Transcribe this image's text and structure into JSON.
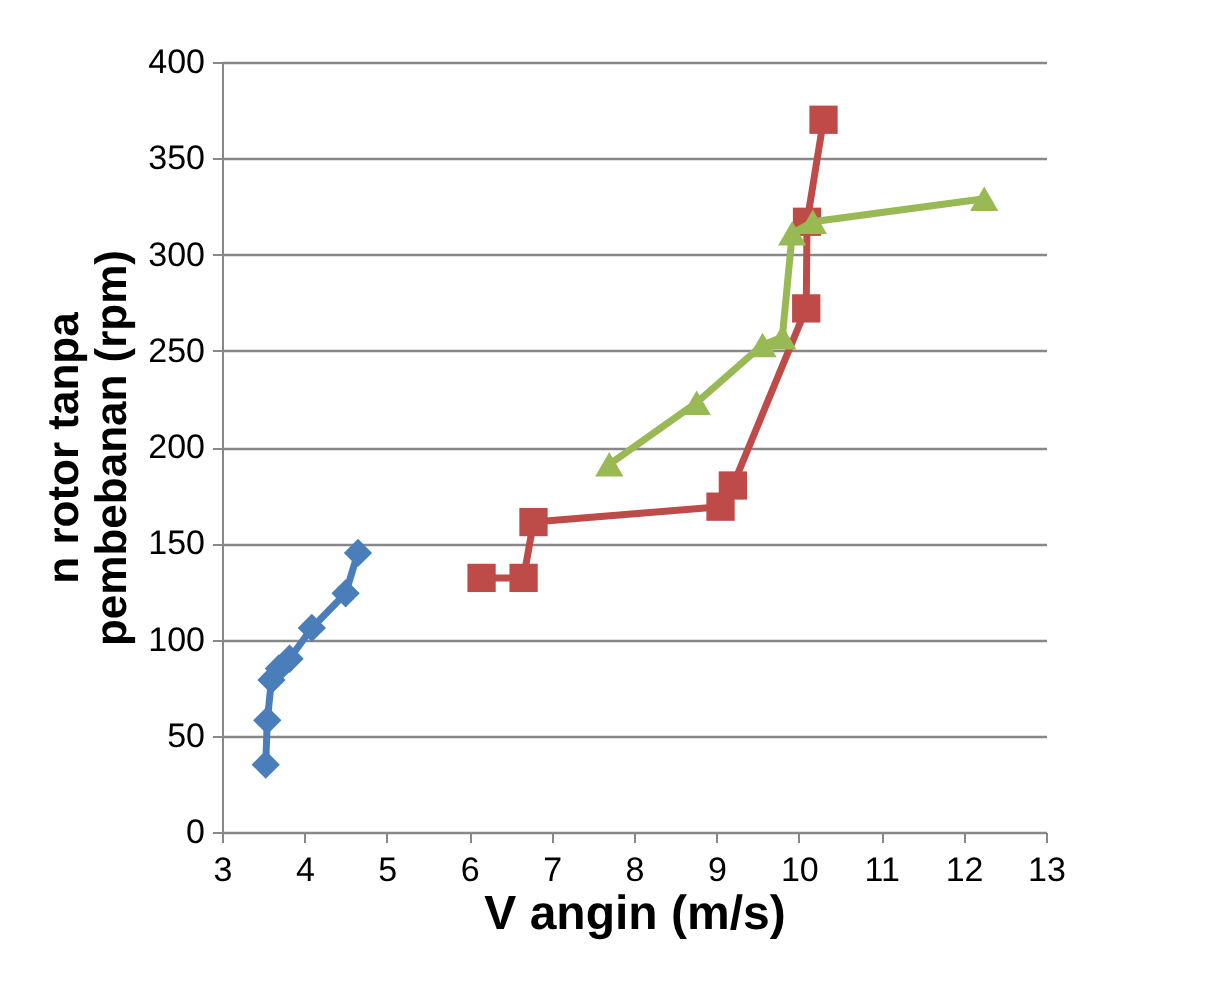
{
  "chart_data": {
    "type": "line",
    "xlabel": "V angin (m/s)",
    "ylabel": "n rotor  tanpa\npembebanan (rpm)",
    "xlim": [
      3,
      13
    ],
    "xticks": [
      3,
      4,
      5,
      6,
      7,
      8,
      9,
      10,
      11,
      12,
      13
    ],
    "ylim": [
      0,
      400
    ],
    "yticks": [
      0,
      50,
      100,
      150,
      200,
      250,
      300,
      350,
      400
    ],
    "grid": "y",
    "series": [
      {
        "color": "#4a7ebb",
        "marker": "diamond",
        "x": [
          3.53,
          3.55,
          3.6,
          3.69,
          3.82,
          4.09,
          4.5,
          4.65
        ],
        "values": [
          35,
          58,
          79,
          85,
          90,
          106,
          124,
          145
        ]
      },
      {
        "color": "#be4b48",
        "marker": "square",
        "x": [
          6.15,
          6.66,
          6.78,
          9.05,
          9.2,
          10.09,
          10.1,
          10.3
        ],
        "values": [
          132,
          132,
          161,
          169,
          180,
          272,
          317,
          370
        ]
      },
      {
        "color": "#98b954",
        "marker": "triangle",
        "x": [
          7.7,
          8.76,
          9.56,
          9.8,
          9.92,
          10.17,
          12.25
        ],
        "values": [
          191,
          223,
          253,
          257,
          311,
          317,
          329
        ]
      }
    ]
  }
}
